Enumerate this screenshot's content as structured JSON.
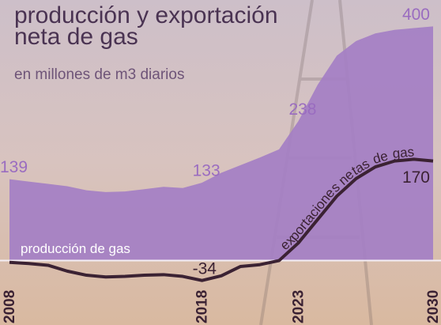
{
  "chart_data": {
    "type": "area-line",
    "title": "producción y exportación neta de gas",
    "subtitle": "en millones de m3 diarios",
    "x": [
      2008,
      2009,
      2010,
      2011,
      2012,
      2013,
      2014,
      2015,
      2016,
      2017,
      2018,
      2019,
      2020,
      2021,
      2022,
      2023,
      2024,
      2025,
      2026,
      2027,
      2028,
      2029,
      2030
    ],
    "xlim": [
      2008,
      2030
    ],
    "xticks": [
      2008,
      2018,
      2023,
      2030
    ],
    "ylim": [
      -110,
      445
    ],
    "series": [
      {
        "name": "producción de gas",
        "kind": "area",
        "color": "#a47fc4",
        "values": [
          139,
          135,
          131,
          127,
          120,
          117,
          118,
          122,
          126,
          124,
          133,
          150,
          163,
          176,
          190,
          238,
          300,
          350,
          375,
          388,
          394,
          397,
          400
        ],
        "labeled": [
          0,
          10,
          15,
          22
        ]
      },
      {
        "name": "exportaciones netas de gas",
        "kind": "line",
        "color": "#3b2233",
        "values": [
          -3,
          -5,
          -8,
          -18,
          -25,
          -28,
          -27,
          -25,
          -24,
          -27,
          -34,
          -26,
          -10,
          -7,
          0,
          30,
          70,
          110,
          140,
          160,
          170,
          173,
          170
        ],
        "labeled": [
          10,
          22
        ]
      }
    ]
  }
}
